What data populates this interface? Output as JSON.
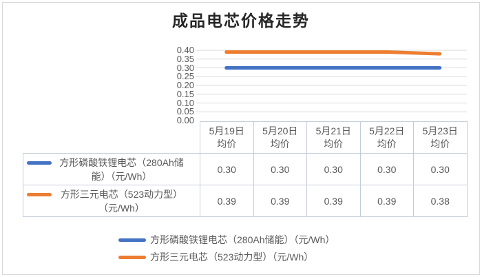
{
  "title": "成品电芯价格走势",
  "chart_data": {
    "type": "line",
    "title": "成品电芯价格走势",
    "categories": [
      "5月19日均价",
      "5月20日均价",
      "5月21日均价",
      "5月22日均价",
      "5月23日均价"
    ],
    "series": [
      {
        "name": "方形磷酸铁锂电芯（280Ah储能）（元/Wh）",
        "values": [
          0.3,
          0.3,
          0.3,
          0.3,
          0.3
        ],
        "color": "#4472C4"
      },
      {
        "name": "方形三元电芯（523动力型）（元/Wh）",
        "values": [
          0.39,
          0.39,
          0.39,
          0.39,
          0.38
        ],
        "color": "#ED7D31"
      }
    ],
    "ylim": [
      0,
      0.4
    ],
    "ytick_step": 0.05,
    "yticks": [
      "0.00",
      "0.05",
      "0.10",
      "0.15",
      "0.20",
      "0.25",
      "0.30",
      "0.35",
      "0.40"
    ],
    "grid": true,
    "legend_position": "bottom",
    "data_table_shown": true
  },
  "table": {
    "corner": "",
    "headers": [
      "5月19日\n均价",
      "5月20日\n均价",
      "5月21日\n均价",
      "5月22日\n均价",
      "5月23日\n均价"
    ],
    "rows": [
      {
        "label": "方形磷酸铁锂电芯（280Ah储能）（元/Wh）",
        "values": [
          "0.30",
          "0.30",
          "0.30",
          "0.30",
          "0.30"
        ]
      },
      {
        "label": "方形三元电芯（523动力型）（元/Wh）",
        "values": [
          "0.39",
          "0.39",
          "0.39",
          "0.39",
          "0.38"
        ]
      }
    ]
  },
  "legend": {
    "items": [
      {
        "label": "方形磷酸铁锂电芯（280Ah储能）（元/Wh）"
      },
      {
        "label": "方形三元电芯（523动力型）（元/Wh）"
      }
    ]
  },
  "colors": {
    "series_lfp": "#4472C4",
    "series_ncm": "#ED7D31",
    "gridline": "#D9D9D9",
    "table_border": "#C4CDDA",
    "text": "#595959",
    "title_text": "#262626",
    "frame_border": "#D9D9D9"
  }
}
